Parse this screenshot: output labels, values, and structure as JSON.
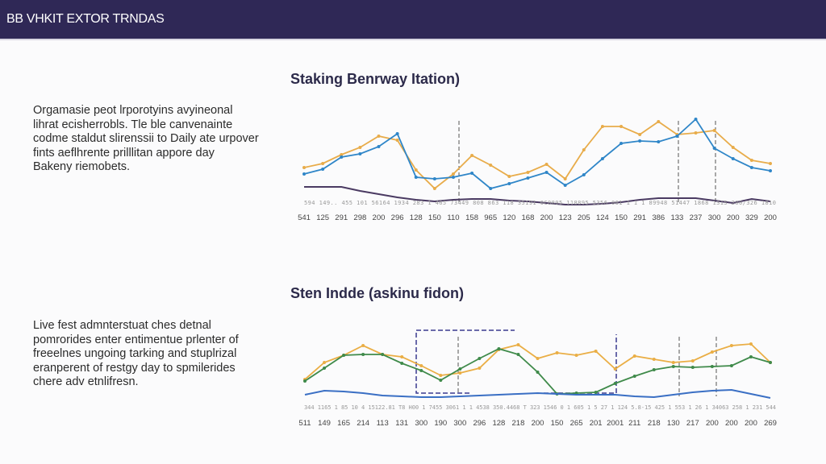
{
  "header": {
    "title": "BB VHKIT EXTOR TRNDAS"
  },
  "sections": [
    {
      "description": [
        "Orgamasie peot lrporotyins avyineonal",
        "lihrat ecisherrobls. Tle ble canvenainte",
        "codme staldut slirenssii to Daily ate urpover",
        "fints aeflhrente prilllitan appore day",
        "Bakeny riemobets."
      ]
    },
    {
      "description": [
        "Live fest admnterstuat ches detnal",
        "pomrorides enter entimentue prlenter of",
        "freeelnes ungoing tarking and stuplrizal",
        "eranperent of restgy day to spmilerides",
        "chere adv etnlifresn."
      ]
    }
  ],
  "chart_data": [
    {
      "type": "line",
      "title": "Staking Benrway Itation)",
      "minor_tick_text": "594 149.. 455 101 56164 1934 283 1 465 73449 808 863 118 35191 0C0805 118895 5356 061 1 1 1 89948 51447 1868 1315 200/326 1810",
      "categories": [
        "541",
        "125",
        "291",
        "298",
        "200",
        "296",
        "128",
        "150",
        "110",
        "158",
        "965",
        "120",
        "168",
        "200",
        "123",
        "205",
        "124",
        "150",
        "291",
        "386",
        "133",
        "237",
        "300",
        "200",
        "329",
        "200"
      ],
      "ylim": [
        0,
        120
      ],
      "grid": false,
      "series": [
        {
          "color": "#e8ac4a",
          "values": [
            52,
            57,
            68,
            77,
            91,
            86,
            49,
            26,
            44,
            67,
            55,
            41,
            46,
            56,
            38,
            74,
            103,
            103,
            93,
            109,
            93,
            95,
            98,
            77,
            61,
            57
          ]
        },
        {
          "color": "#2f86c8",
          "values": [
            44,
            50,
            65,
            69,
            78,
            94,
            40,
            38,
            40,
            45,
            26,
            32,
            39,
            46,
            30,
            43,
            63,
            82,
            85,
            84,
            91,
            112,
            76,
            63,
            52,
            48
          ]
        },
        {
          "color": "#4a3a62",
          "values": [
            28,
            28,
            28,
            23,
            19,
            15,
            12,
            10,
            12,
            13,
            13,
            11,
            10,
            8,
            6,
            6,
            7,
            9,
            12,
            14,
            14,
            14,
            11,
            8,
            13,
            10
          ]
        }
      ]
    },
    {
      "type": "line",
      "title": "Sten Indde (askinu fidon)",
      "minor_tick_text": "344 1165 1 85 10 4 15122.81 T8 H00 1 7455 3061 1 1 4538 350.4468 T 323 1546 0 1 605 1 5 27 1 124 5.8-15 425 1 553 1 26 1 34063 258 1 231 544",
      "categories": [
        "511",
        "149",
        "165",
        "214",
        "113",
        "131",
        "300",
        "190",
        "300",
        "296",
        "128",
        "218",
        "200",
        "150",
        "265",
        "201",
        "2001",
        "211",
        "218",
        "130",
        "217",
        "200",
        "200",
        "200",
        "269"
      ],
      "ylim": [
        0,
        100
      ],
      "grid": false,
      "series": [
        {
          "color": "#eaae45",
          "values": [
            29,
            50,
            59,
            71,
            60,
            57,
            46,
            34,
            37,
            43,
            66,
            72,
            55,
            62,
            59,
            64,
            42,
            58,
            54,
            50,
            52,
            63,
            71,
            73,
            50
          ]
        },
        {
          "color": "#3f8a4a",
          "values": [
            27,
            43,
            59,
            60,
            60,
            49,
            40,
            28,
            42,
            55,
            67,
            60,
            38,
            11,
            12,
            13,
            24,
            33,
            41,
            45,
            44,
            45,
            46,
            57,
            50
          ]
        },
        {
          "color": "#3a6fc4",
          "values": [
            10,
            15,
            14,
            12,
            9,
            8,
            7,
            7,
            8,
            9,
            10,
            11,
            12,
            11,
            10,
            10,
            10,
            8,
            7,
            10,
            13,
            15,
            16,
            11,
            6
          ]
        }
      ]
    }
  ]
}
